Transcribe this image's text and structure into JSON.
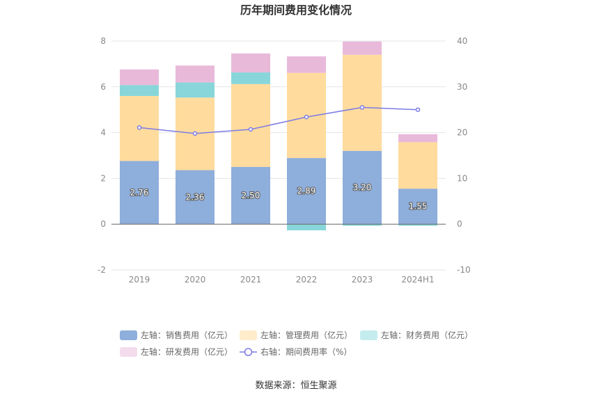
{
  "chart_data": {
    "type": "bar",
    "title": "历年期间费用变化情况",
    "categories": [
      "2019",
      "2020",
      "2021",
      "2022",
      "2023",
      "2024H1"
    ],
    "left_axis": {
      "ylim": [
        -2,
        8
      ],
      "ticks": [
        "-2",
        "0",
        "2",
        "4",
        "6",
        "8"
      ]
    },
    "right_axis": {
      "ylim": [
        -10,
        40
      ],
      "ticks": [
        "-10",
        "0",
        "10",
        "20",
        "30",
        "40"
      ]
    },
    "series": [
      {
        "name": "左轴：销售费用（亿元）",
        "axis": "left",
        "color": "#8eaedb",
        "legend_color": "#8eaedb",
        "values": [
          2.76,
          2.36,
          2.5,
          2.89,
          3.2,
          1.55
        ],
        "labels": [
          "2.76",
          "2.36",
          "2.50",
          "2.89",
          "3.20",
          "1.55"
        ]
      },
      {
        "name": "左轴：管理费用（亿元）",
        "axis": "left",
        "color": "#ffdb9d",
        "legend_color": "#ffeccb",
        "values": [
          2.84,
          3.17,
          3.62,
          3.72,
          4.2,
          2.03
        ]
      },
      {
        "name": "左轴：财务费用（亿元）",
        "axis": "left",
        "color": "#88d6da",
        "legend_color": "#c4ecee",
        "values": [
          0.48,
          0.66,
          0.51,
          -0.27,
          -0.07,
          -0.07
        ]
      },
      {
        "name": "左轴：研发费用（亿元）",
        "axis": "left",
        "color": "#e9b9da",
        "legend_color": "#f4dcec",
        "values": [
          0.68,
          0.74,
          0.83,
          0.72,
          0.58,
          0.35
        ]
      },
      {
        "name": "右轴：期间费用率（%）",
        "axis": "right",
        "type": "line",
        "color": "#7b7be6",
        "values": [
          21.1,
          19.8,
          20.7,
          23.4,
          25.5,
          25.0
        ]
      }
    ],
    "source": "数据来源：恒生聚源"
  }
}
